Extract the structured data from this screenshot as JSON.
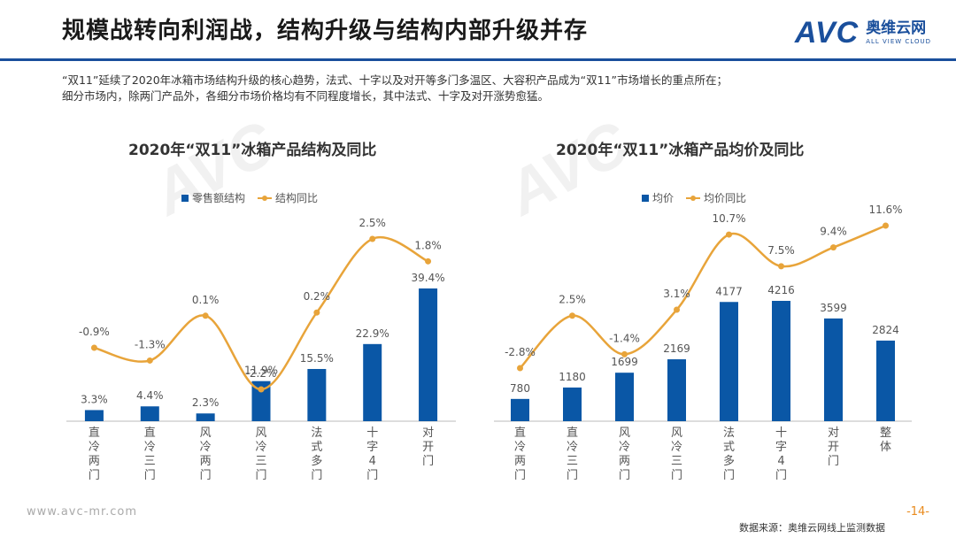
{
  "header": {
    "title": "规模战转向利润战，结构升级与结构内部升级并存"
  },
  "logo": {
    "mark": "AVC",
    "cn": "奥维云网",
    "en": "ALL VIEW CLOUD"
  },
  "intro": {
    "line1": "“双11”延续了2020年冰箱市场结构升级的核心趋势，法式、十字以及对开等多门多温区、大容积产品成为“双11”市场增长的重点所在；",
    "line2": "细分市场内，除两门产品外，各细分市场价格均有不同程度增长，其中法式、十字及对开涨势愈猛。"
  },
  "footer": {
    "url": "www.avc-mr.com",
    "page": "-14-",
    "source": "数据来源：奥维云网线上监测数据"
  },
  "colors": {
    "bar": "#0a57a6",
    "line": "#e8a43a",
    "accent": "#1a4f9c"
  },
  "chart_data": [
    {
      "type": "bar",
      "title": "2020年“双11”冰箱产品结构及同比",
      "categories": [
        "直冷两门",
        "直冷三门",
        "风冷两门",
        "风冷三门",
        "法式多门",
        "十字4门",
        "对开门"
      ],
      "series": [
        {
          "name": "零售额结构",
          "type": "bar",
          "values": [
            3.3,
            4.4,
            2.3,
            11.9,
            15.5,
            22.9,
            39.4
          ],
          "labels": [
            "3.3%",
            "4.4%",
            "2.3%",
            "11.9%",
            "15.5%",
            "22.9%",
            "39.4%"
          ]
        },
        {
          "name": "结构同比",
          "type": "line",
          "values": [
            -0.9,
            -1.3,
            0.1,
            -2.2,
            0.2,
            2.5,
            1.8
          ],
          "labels": [
            "-0.9%",
            "-1.3%",
            "0.1%",
            "-2.2%",
            "0.2%",
            "2.5%",
            "1.8%"
          ]
        }
      ]
    },
    {
      "type": "bar",
      "title": "2020年“双11”冰箱产品均价及同比",
      "categories": [
        "直冷两门",
        "直冷三门",
        "风冷两门",
        "风冷三门",
        "法式多门",
        "十字4门",
        "对开门",
        "整体"
      ],
      "series": [
        {
          "name": "均价",
          "type": "bar",
          "values": [
            780,
            1180,
            1699,
            2169,
            4177,
            4216,
            3599,
            2824
          ],
          "labels": [
            "780",
            "1180",
            "1699",
            "2169",
            "4177",
            "4216",
            "3599",
            "2824"
          ]
        },
        {
          "name": "均价同比",
          "type": "line",
          "values": [
            -2.8,
            2.5,
            -1.4,
            3.1,
            10.7,
            7.5,
            9.4,
            11.6
          ],
          "labels": [
            "-2.8%",
            "2.5%",
            "-1.4%",
            "3.1%",
            "10.7%",
            "7.5%",
            "9.4%",
            "11.6%"
          ]
        }
      ]
    }
  ]
}
